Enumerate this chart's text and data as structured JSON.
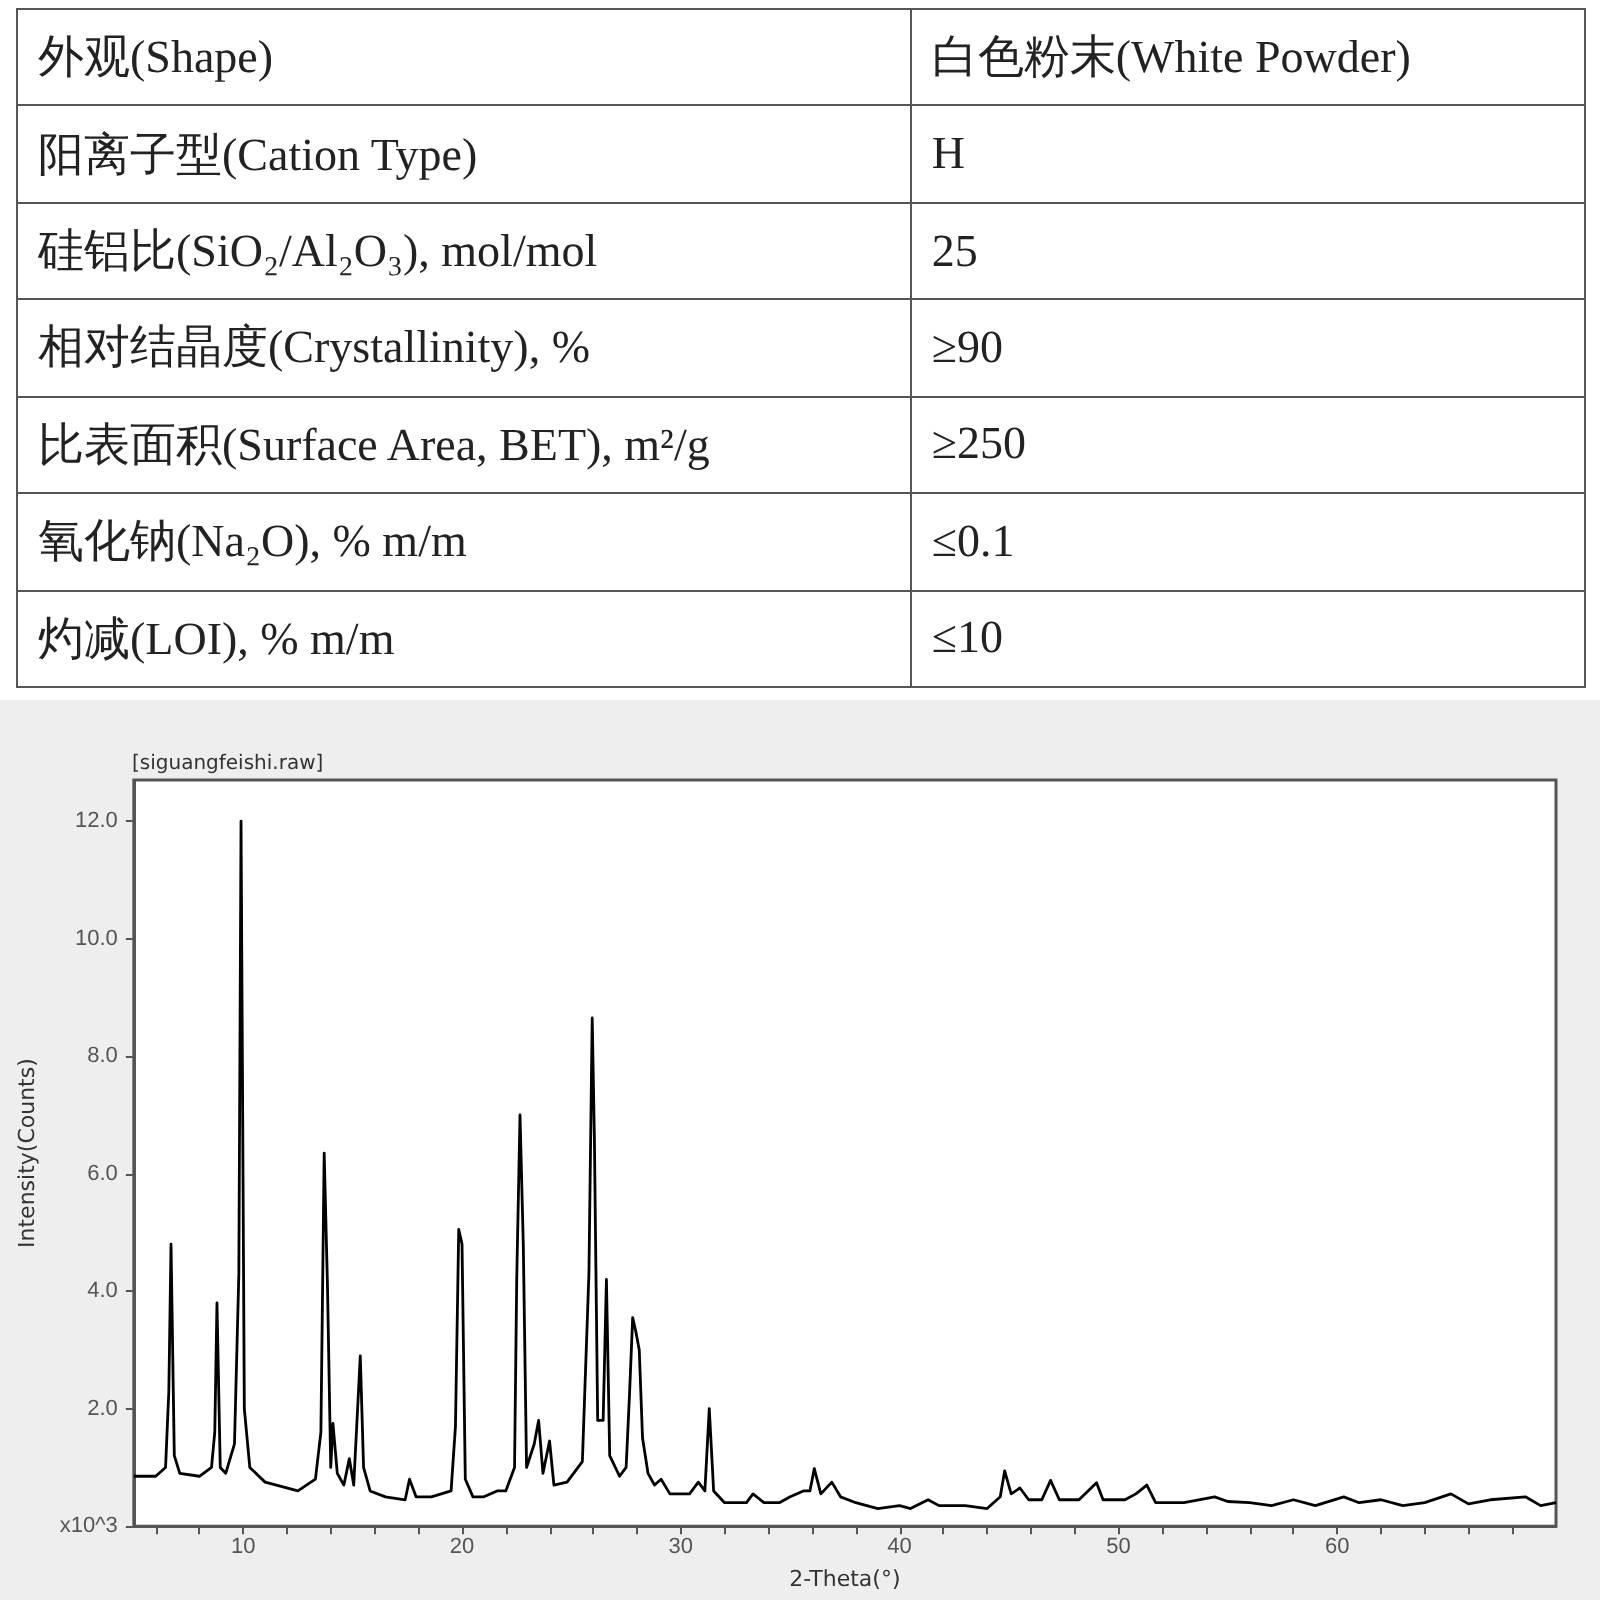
{
  "chart_data": [
    {
      "type": "other",
      "annotations": [
        "外观(Shape)",
        "白色粉末(White Powder)",
        "阳离子型(Cation Type)",
        "H",
        "硅铝比(SiO₂/Al₂O₃), mol/mol",
        "25",
        "相对结晶度(Crystallinity), %",
        "≥90",
        "比表面积(Surface Area, BET), m²/g",
        "≥250",
        "氧化钠(Na₂O), % m/m",
        "≤0.1",
        "灼减(LOI), % m/m",
        "≤10"
      ]
    },
    {
      "type": "line",
      "title": "[siguangfeishi.raw]",
      "xlabel": "2-Theta(°)",
      "ylabel": "Intensity(Counts)",
      "xlim": [
        5,
        70
      ],
      "xticks": [
        {
          "value": 6,
          "label": null
        },
        {
          "value": 8,
          "label": null
        },
        10,
        {
          "value": 12,
          "label": null
        },
        {
          "value": 14,
          "label": null
        },
        {
          "value": 16,
          "label": null
        },
        {
          "value": 18,
          "label": null
        },
        20,
        {
          "value": 22,
          "label": null
        },
        {
          "value": 24,
          "label": null
        },
        {
          "value": 26,
          "label": null
        },
        {
          "value": 28,
          "label": null
        },
        30,
        {
          "value": 32,
          "label": null
        },
        {
          "value": 34,
          "label": null
        },
        {
          "value": 36,
          "label": null
        },
        {
          "value": 38,
          "label": null
        },
        40,
        {
          "value": 42,
          "label": null
        },
        {
          "value": 44,
          "label": null
        },
        {
          "value": 46,
          "label": null
        },
        {
          "value": 48,
          "label": null
        },
        50,
        {
          "value": 52,
          "label": null
        },
        {
          "value": 54,
          "label": null
        },
        {
          "value": 56,
          "label": null
        },
        {
          "value": 58,
          "label": null
        },
        60,
        {
          "value": 62,
          "label": null
        },
        {
          "value": 64,
          "label": null
        },
        {
          "value": 66,
          "label": null
        },
        {
          "value": 68,
          "label": null
        }
      ],
      "ylim": [
        0,
        12.7
      ],
      "yticks": [
        {
          "value": 0,
          "label": "x10^3"
        },
        {
          "value": 2,
          "label": "2.0"
        },
        {
          "value": 4,
          "label": "4.0"
        },
        {
          "value": 6,
          "label": "6.0"
        },
        {
          "value": 8,
          "label": "8.0"
        },
        {
          "value": 10,
          "label": "10.0"
        },
        {
          "value": 12,
          "label": "12.0"
        }
      ],
      "series": [
        {
          "color": "#000000",
          "x": [
            5.0,
            6.0,
            6.45,
            6.6,
            6.7,
            6.85,
            7.1,
            8.0,
            8.55,
            8.7,
            8.8,
            8.95,
            9.2,
            9.6,
            9.8,
            9.9,
            10.05,
            10.3,
            11.0,
            12.5,
            13.3,
            13.55,
            13.7,
            13.85,
            14.0,
            14.1,
            14.3,
            14.6,
            14.85,
            15.05,
            15.35,
            15.5,
            15.8,
            16.5,
            17.4,
            17.6,
            17.9,
            18.6,
            19.5,
            19.7,
            19.85,
            20.0,
            20.15,
            20.5,
            21.0,
            21.6,
            22.0,
            22.4,
            22.5,
            22.65,
            22.8,
            22.95,
            23.3,
            23.5,
            23.7,
            24.0,
            24.2,
            24.8,
            25.5,
            25.8,
            25.95,
            26.05,
            26.2,
            26.45,
            26.6,
            26.75,
            27.2,
            27.5,
            27.65,
            27.8,
            27.95,
            28.1,
            28.25,
            28.5,
            28.8,
            29.1,
            29.5,
            30.4,
            30.8,
            31.1,
            31.3,
            31.5,
            32.0,
            33.0,
            33.3,
            33.8,
            34.5,
            35.0,
            35.6,
            35.9,
            36.1,
            36.4,
            36.9,
            37.3,
            38.0,
            39.0,
            40.0,
            40.5,
            41.3,
            41.8,
            43.0,
            44.0,
            44.6,
            44.8,
            45.1,
            45.5,
            45.9,
            46.5,
            46.9,
            47.3,
            48.2,
            49.0,
            49.3,
            50.3,
            50.8,
            51.3,
            51.7,
            53.0,
            54.4,
            55.0,
            56.0,
            57.0,
            58.0,
            59.0,
            60.3,
            61.0,
            62.0,
            63.0,
            64.0,
            65.2,
            66.0,
            67.0,
            68.6,
            69.3,
            70.0
          ],
          "values": [
            0.85,
            0.85,
            1.0,
            2.3,
            4.8,
            1.2,
            0.9,
            0.85,
            1.0,
            1.6,
            3.8,
            1.0,
            0.9,
            1.4,
            4.3,
            12.0,
            2.0,
            1.0,
            0.75,
            0.6,
            0.8,
            1.6,
            6.35,
            4.1,
            1.0,
            1.75,
            0.9,
            0.7,
            1.15,
            0.7,
            2.9,
            1.0,
            0.6,
            0.5,
            0.45,
            0.8,
            0.5,
            0.5,
            0.6,
            1.7,
            5.05,
            4.8,
            0.8,
            0.5,
            0.5,
            0.6,
            0.6,
            1.0,
            4.2,
            7.0,
            4.8,
            1.0,
            1.4,
            1.8,
            0.9,
            1.45,
            0.7,
            0.75,
            1.1,
            4.3,
            8.65,
            6.6,
            1.8,
            1.8,
            4.2,
            1.2,
            0.85,
            1.0,
            2.2,
            3.55,
            3.3,
            3.0,
            1.5,
            0.9,
            0.7,
            0.8,
            0.55,
            0.55,
            0.75,
            0.6,
            2.0,
            0.6,
            0.4,
            0.4,
            0.55,
            0.4,
            0.4,
            0.5,
            0.6,
            0.6,
            0.98,
            0.55,
            0.75,
            0.5,
            0.4,
            0.3,
            0.35,
            0.3,
            0.45,
            0.35,
            0.35,
            0.3,
            0.5,
            0.94,
            0.55,
            0.65,
            0.45,
            0.45,
            0.78,
            0.45,
            0.45,
            0.74,
            0.45,
            0.45,
            0.55,
            0.7,
            0.4,
            0.4,
            0.5,
            0.42,
            0.4,
            0.35,
            0.45,
            0.35,
            0.5,
            0.4,
            0.45,
            0.35,
            0.4,
            0.55,
            0.38,
            0.45,
            0.5,
            0.35,
            0.4
          ]
        }
      ]
    }
  ]
}
